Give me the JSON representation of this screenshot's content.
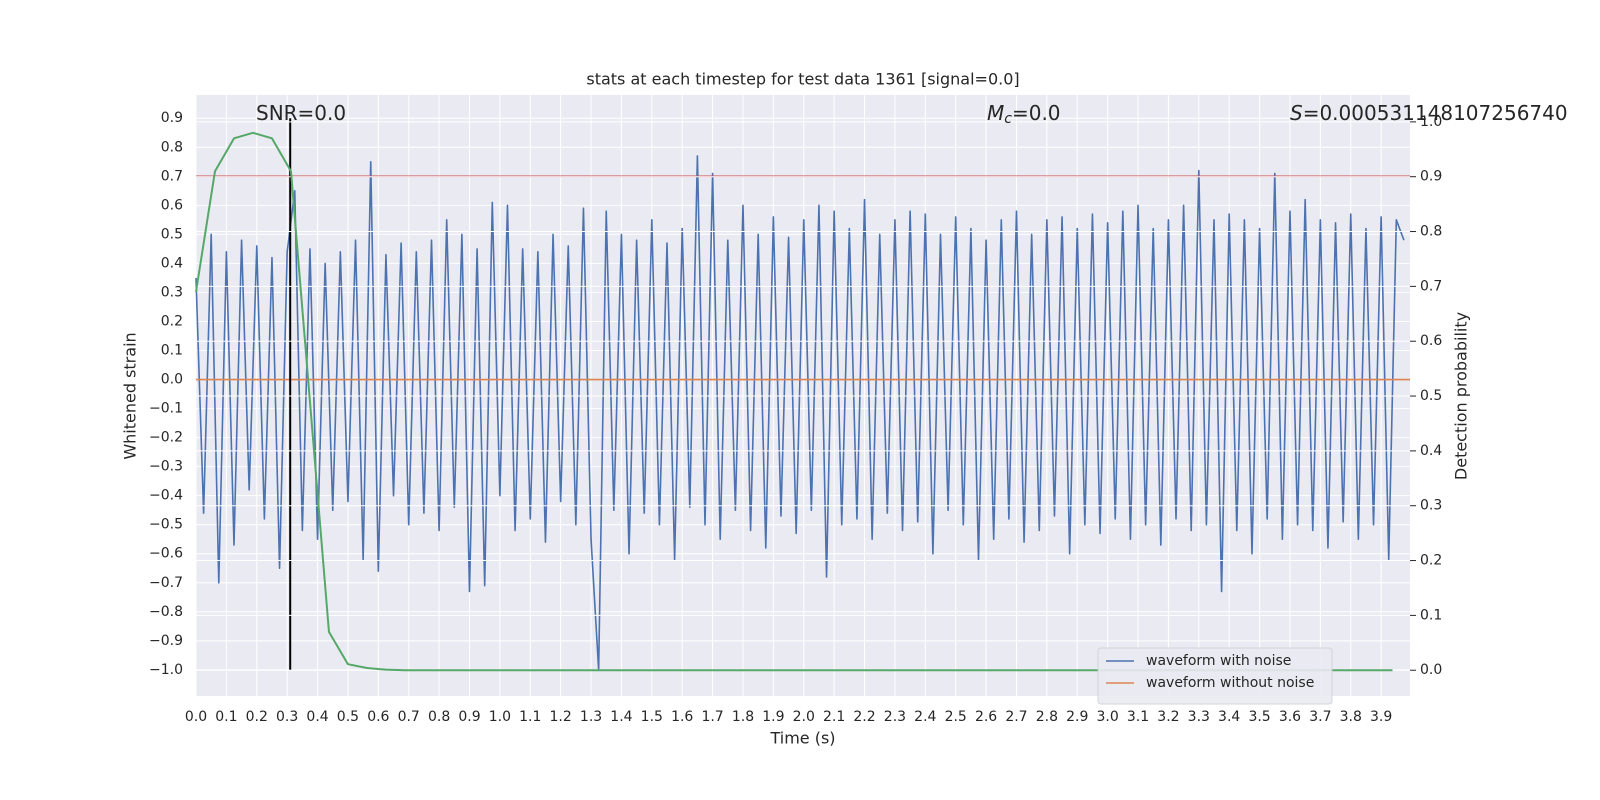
{
  "chart_data": {
    "type": "line",
    "title": "stats at each timestep for test data 1361 [signal=0.0]",
    "x_label": "Time (s)",
    "y_label": "Whitened strain",
    "y2_label": "Detection probability",
    "annotations": [
      {
        "text": "SNR=0.0"
      },
      {
        "symbol": "M",
        "subscript": "c",
        "text": "=0.0"
      },
      {
        "symbol": "S",
        "text": "=0.000531148107256740"
      }
    ],
    "xlim": [
      0,
      3.995
    ],
    "ylim": [
      -1.09,
      0.98
    ],
    "y2lim": [
      -0.047,
      1.049
    ],
    "grid": true,
    "legend": "lower right",
    "xticks": [
      {
        "value": 0,
        "label": "0.0"
      },
      {
        "value": 0.1,
        "label": "0.1"
      },
      {
        "value": 0.2,
        "label": "0.2"
      },
      {
        "value": 0.3,
        "label": "0.3"
      },
      {
        "value": 0.4,
        "label": "0.4"
      },
      {
        "value": 0.5,
        "label": "0.5"
      },
      {
        "value": 0.6,
        "label": "0.6"
      },
      {
        "value": 0.7,
        "label": "0.7"
      },
      {
        "value": 0.8,
        "label": "0.8"
      },
      {
        "value": 0.9,
        "label": "0.9"
      },
      {
        "value": 1,
        "label": "1.0"
      },
      {
        "value": 1.1,
        "label": "1.1"
      },
      {
        "value": 1.2,
        "label": "1.2"
      },
      {
        "value": 1.3,
        "label": "1.3"
      },
      {
        "value": 1.4,
        "label": "1.4"
      },
      {
        "value": 1.5,
        "label": "1.5"
      },
      {
        "value": 1.6,
        "label": "1.6"
      },
      {
        "value": 1.7,
        "label": "1.7"
      },
      {
        "value": 1.8,
        "label": "1.8"
      },
      {
        "value": 1.9,
        "label": "1.9"
      },
      {
        "value": 2,
        "label": "2.0"
      },
      {
        "value": 2.1,
        "label": "2.1"
      },
      {
        "value": 2.2,
        "label": "2.2"
      },
      {
        "value": 2.3,
        "label": "2.3"
      },
      {
        "value": 2.4,
        "label": "2.4"
      },
      {
        "value": 2.5,
        "label": "2.5"
      },
      {
        "value": 2.6,
        "label": "2.6"
      },
      {
        "value": 2.7,
        "label": "2.7"
      },
      {
        "value": 2.8,
        "label": "2.8"
      },
      {
        "value": 2.9,
        "label": "2.9"
      },
      {
        "value": 3,
        "label": "3.0"
      },
      {
        "value": 3.1,
        "label": "3.1"
      },
      {
        "value": 3.2,
        "label": "3.2"
      },
      {
        "value": 3.3,
        "label": "3.3"
      },
      {
        "value": 3.4,
        "label": "3.4"
      },
      {
        "value": 3.5,
        "label": "3.5"
      },
      {
        "value": 3.6,
        "label": "3.6"
      },
      {
        "value": 3.7,
        "label": "3.7"
      },
      {
        "value": 3.8,
        "label": "3.8"
      },
      {
        "value": 3.9,
        "label": "3.9"
      }
    ],
    "yticks": [
      {
        "value": -1,
        "label": "−1.0"
      },
      {
        "value": -0.9,
        "label": "−0.9"
      },
      {
        "value": -0.8,
        "label": "−0.8"
      },
      {
        "value": -0.7,
        "label": "−0.7"
      },
      {
        "value": -0.6,
        "label": "−0.6"
      },
      {
        "value": -0.5,
        "label": "−0.5"
      },
      {
        "value": -0.4,
        "label": "−0.4"
      },
      {
        "value": -0.3,
        "label": "−0.3"
      },
      {
        "value": -0.2,
        "label": "−0.2"
      },
      {
        "value": -0.1,
        "label": "−0.1"
      },
      {
        "value": 0,
        "label": "0.0"
      },
      {
        "value": 0.1,
        "label": "0.1"
      },
      {
        "value": 0.2,
        "label": "0.2"
      },
      {
        "value": 0.3,
        "label": "0.3"
      },
      {
        "value": 0.4,
        "label": "0.4"
      },
      {
        "value": 0.5,
        "label": "0.5"
      },
      {
        "value": 0.6,
        "label": "0.6"
      },
      {
        "value": 0.7,
        "label": "0.7"
      },
      {
        "value": 0.8,
        "label": "0.8"
      },
      {
        "value": 0.9,
        "label": "0.9"
      }
    ],
    "y2ticks": [
      {
        "value": 0,
        "label": "0.0"
      },
      {
        "value": 0.1,
        "label": "0.1"
      },
      {
        "value": 0.2,
        "label": "0.2"
      },
      {
        "value": 0.3,
        "label": "0.3"
      },
      {
        "value": 0.4,
        "label": "0.4"
      },
      {
        "value": 0.5,
        "label": "0.5"
      },
      {
        "value": 0.6,
        "label": "0.6"
      },
      {
        "value": 0.7,
        "label": "0.7"
      },
      {
        "value": 0.8,
        "label": "0.8"
      },
      {
        "value": 0.9,
        "label": "0.9"
      },
      {
        "value": 1,
        "label": "1.0"
      }
    ],
    "hline": {
      "y": 0.7,
      "color": "#c44e52"
    },
    "vline": {
      "x": 0.31,
      "ymin": -1.0,
      "ymax": 0.9,
      "color": "#000000"
    },
    "series": [
      {
        "name": "waveform with noise",
        "color": "#4c72b0",
        "x": [
          0,
          0.025,
          0.05,
          0.075,
          0.1,
          0.125,
          0.15,
          0.175,
          0.2,
          0.225,
          0.25,
          0.275,
          0.3,
          0.325,
          0.35,
          0.375,
          0.4,
          0.425,
          0.45,
          0.475,
          0.5,
          0.525,
          0.55,
          0.575,
          0.6,
          0.625,
          0.65,
          0.675,
          0.7,
          0.725,
          0.75,
          0.775,
          0.8,
          0.825,
          0.85,
          0.875,
          0.9,
          0.925,
          0.95,
          0.975,
          1,
          1.025,
          1.05,
          1.075,
          1.1,
          1.125,
          1.15,
          1.175,
          1.2,
          1.225,
          1.25,
          1.275,
          1.3,
          1.325,
          1.35,
          1.375,
          1.4,
          1.425,
          1.45,
          1.475,
          1.5,
          1.525,
          1.55,
          1.575,
          1.6,
          1.625,
          1.65,
          1.675,
          1.7,
          1.725,
          1.75,
          1.775,
          1.8,
          1.825,
          1.85,
          1.875,
          1.9,
          1.925,
          1.95,
          1.975,
          2,
          2.025,
          2.05,
          2.075,
          2.1,
          2.125,
          2.15,
          2.175,
          2.2,
          2.225,
          2.25,
          2.275,
          2.3,
          2.325,
          2.35,
          2.375,
          2.4,
          2.425,
          2.45,
          2.475,
          2.5,
          2.525,
          2.55,
          2.575,
          2.6,
          2.625,
          2.65,
          2.675,
          2.7,
          2.725,
          2.75,
          2.775,
          2.8,
          2.825,
          2.85,
          2.875,
          2.9,
          2.925,
          2.95,
          2.975,
          3,
          3.025,
          3.05,
          3.075,
          3.1,
          3.125,
          3.15,
          3.175,
          3.2,
          3.225,
          3.25,
          3.275,
          3.3,
          3.325,
          3.35,
          3.375,
          3.4,
          3.425,
          3.45,
          3.475,
          3.5,
          3.525,
          3.55,
          3.575,
          3.6,
          3.625,
          3.65,
          3.675,
          3.7,
          3.725,
          3.75,
          3.775,
          3.8,
          3.825,
          3.85,
          3.875,
          3.9,
          3.925,
          3.95,
          3.975
        ],
        "values": [
          0.35,
          -0.46,
          0.5,
          -0.7,
          0.44,
          -0.57,
          0.48,
          -0.38,
          0.46,
          -0.48,
          0.42,
          -0.65,
          0.44,
          0.65,
          -0.52,
          0.45,
          -0.55,
          0.4,
          -0.45,
          0.44,
          -0.42,
          0.48,
          -0.62,
          0.75,
          -0.66,
          0.43,
          -0.4,
          0.47,
          -0.5,
          0.44,
          -0.46,
          0.48,
          -0.52,
          0.55,
          -0.44,
          0.5,
          -0.73,
          0.45,
          -0.71,
          0.61,
          -0.4,
          0.6,
          -0.52,
          0.45,
          -0.48,
          0.44,
          -0.56,
          0.5,
          -0.42,
          0.46,
          -0.5,
          0.59,
          -0.55,
          -1.0,
          0.58,
          -0.45,
          0.5,
          -0.6,
          0.48,
          -0.46,
          0.55,
          -0.5,
          0.47,
          -0.62,
          0.52,
          -0.44,
          0.77,
          -0.5,
          0.71,
          -0.55,
          0.48,
          -0.45,
          0.6,
          -0.52,
          0.5,
          -0.58,
          0.56,
          -0.47,
          0.49,
          -0.53,
          0.55,
          -0.45,
          0.6,
          -0.68,
          0.58,
          -0.5,
          0.52,
          -0.48,
          0.62,
          -0.55,
          0.5,
          -0.46,
          0.55,
          -0.52,
          0.58,
          -0.49,
          0.57,
          -0.6,
          0.5,
          -0.45,
          0.56,
          -0.5,
          0.52,
          -0.62,
          0.48,
          -0.55,
          0.55,
          -0.48,
          0.58,
          -0.56,
          0.5,
          -0.52,
          0.55,
          -0.47,
          0.56,
          -0.6,
          0.52,
          -0.5,
          0.57,
          -0.53,
          0.54,
          -0.48,
          0.58,
          -0.55,
          0.6,
          -0.5,
          0.52,
          -0.57,
          0.55,
          -0.48,
          0.6,
          -0.52,
          0.72,
          -0.5,
          0.55,
          -0.73,
          0.57,
          -0.52,
          0.55,
          -0.6,
          0.52,
          -0.48,
          0.71,
          -0.55,
          0.58,
          -0.5,
          0.62,
          -0.52,
          0.55,
          -0.58,
          0.54,
          -0.49,
          0.57,
          -0.55,
          0.52,
          -0.5,
          0.56,
          -0.62,
          0.55,
          0.48
        ]
      },
      {
        "name": "waveform without noise",
        "color": "#dd8452",
        "x": [
          0,
          3.995
        ],
        "values": [
          0,
          0
        ]
      },
      {
        "color": "#55a868",
        "axis": "y2",
        "x": [
          0,
          0.0625,
          0.125,
          0.1875,
          0.25,
          0.3125,
          0.375,
          0.4375,
          0.5,
          0.5625,
          0.625,
          0.6875,
          0.75,
          0.8125,
          0.875,
          0.9375,
          1,
          1.0625,
          1.125,
          1.1875,
          1.25,
          1.3125,
          1.375,
          1.4375,
          1.5,
          1.5625,
          1.625,
          1.6875,
          1.75,
          1.8125,
          1.875,
          1.9375,
          2,
          2.0625,
          2.125,
          2.1875,
          2.25,
          2.3125,
          2.375,
          2.4375,
          2.5,
          2.5625,
          2.625,
          2.6875,
          2.75,
          2.8125,
          2.875,
          2.9375,
          3,
          3.0625,
          3.125,
          3.1875,
          3.25,
          3.3125,
          3.375,
          3.4375,
          3.5,
          3.5625,
          3.625,
          3.6875,
          3.75,
          3.8125,
          3.875,
          3.9375
        ],
        "values": [
          0.69,
          0.91,
          0.97,
          0.98,
          0.97,
          0.91,
          0.49,
          0.07,
          0.011,
          0.004,
          0.001,
          0,
          0,
          0,
          0,
          0,
          0,
          0,
          0,
          0,
          0,
          0,
          0,
          0,
          0,
          0,
          0,
          0,
          0,
          0,
          0,
          0,
          0,
          0,
          0,
          0,
          0,
          0,
          0,
          0,
          0,
          0,
          0,
          0,
          0,
          0,
          0,
          0,
          0,
          0,
          0,
          0,
          0,
          0,
          0,
          0,
          0,
          0,
          0,
          0,
          0,
          0,
          0,
          0
        ]
      }
    ]
  }
}
